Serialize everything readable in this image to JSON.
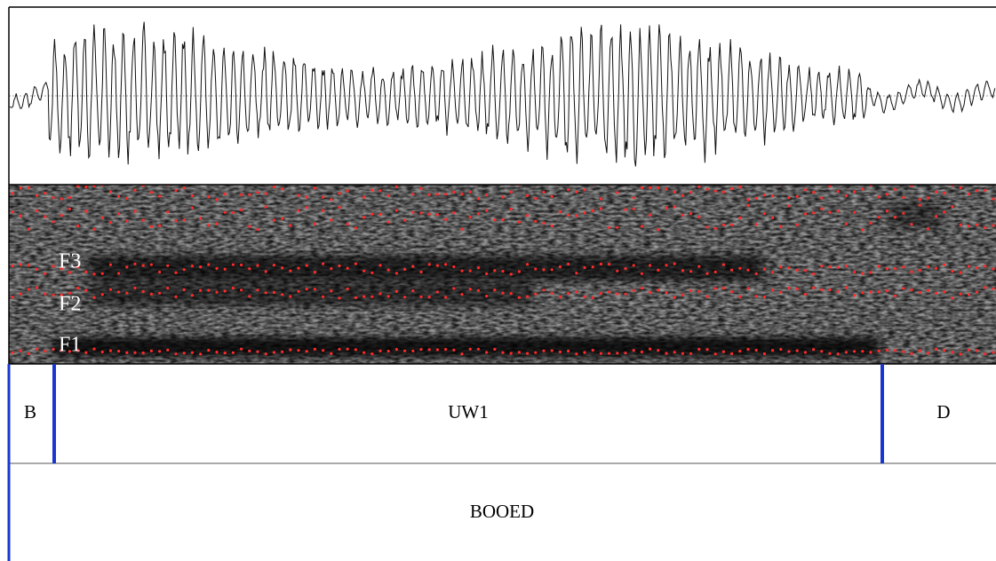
{
  "spectrogram": {
    "formant_labels": [
      "F3",
      "F2",
      "F1"
    ]
  },
  "tiers": [
    {
      "intervals": [
        "B",
        "UW1",
        "D"
      ]
    },
    {
      "intervals": [
        "BOOED"
      ]
    }
  ]
}
